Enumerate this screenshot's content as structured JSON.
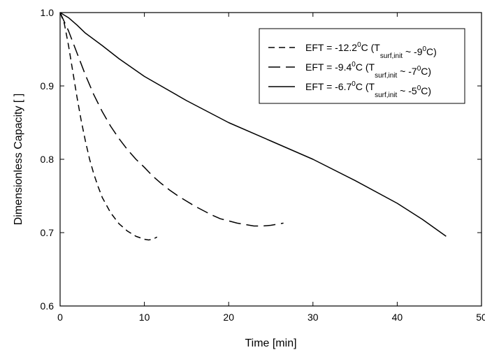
{
  "chart_data": {
    "type": "line",
    "title": "",
    "xlabel": "Time [min]",
    "ylabel": "Dimensionless Capacity [ ]",
    "xlim": [
      0,
      50
    ],
    "ylim": [
      0.6,
      1.0
    ],
    "xticks": [
      0,
      10,
      20,
      30,
      40,
      50
    ],
    "xtick_labels": [
      "0",
      "10",
      "20",
      "30",
      "40",
      "50"
    ],
    "yticks": [
      0.6,
      0.7,
      0.8,
      0.9,
      1.0
    ],
    "ytick_labels": [
      "0.6",
      "0.7",
      "0.8",
      "0.9",
      "1.0"
    ],
    "grid": false,
    "legend_position": "top-right",
    "series": [
      {
        "name": "EFT = -12.2°C (Tsurf,init ~ -9°C)",
        "legend": {
          "pre": "EFT = -12.2",
          "sup1": "0",
          "mid": "C (T",
          "sub": "surf,init",
          "post": " ~ -9",
          "sup2": "0",
          "end": "C)"
        },
        "line_style": "dashed-short",
        "color": "#000000",
        "x": [
          0,
          0.5,
          1,
          1.5,
          2,
          2.5,
          3,
          3.5,
          4,
          4.5,
          5,
          6,
          7,
          8,
          9,
          10,
          10.5,
          11,
          11.5
        ],
        "y": [
          1.0,
          0.985,
          0.955,
          0.92,
          0.885,
          0.853,
          0.825,
          0.8,
          0.78,
          0.763,
          0.748,
          0.727,
          0.712,
          0.702,
          0.695,
          0.691,
          0.69,
          0.691,
          0.694
        ]
      },
      {
        "name": "EFT = -9.4°C (Tsurf,init ~ -7°C)",
        "legend": {
          "pre": "EFT = -9.4",
          "sup1": "0",
          "mid": "C (T",
          "sub": "surf,init",
          "post": " ~ -7",
          "sup2": "0",
          "end": "C)"
        },
        "line_style": "dashed-long",
        "color": "#000000",
        "x": [
          0,
          1,
          2,
          3,
          4,
          5,
          6,
          7,
          8,
          9,
          10,
          11,
          12,
          13,
          14,
          15,
          16,
          17,
          18,
          19,
          20,
          21,
          22,
          23,
          24,
          25,
          26.5
        ],
        "y": [
          1.0,
          0.975,
          0.945,
          0.915,
          0.888,
          0.865,
          0.845,
          0.828,
          0.813,
          0.8,
          0.789,
          0.777,
          0.767,
          0.758,
          0.75,
          0.743,
          0.736,
          0.73,
          0.724,
          0.719,
          0.716,
          0.713,
          0.711,
          0.709,
          0.709,
          0.71,
          0.713
        ]
      },
      {
        "name": "EFT = -6.7°C (Tsurf,init ~ -5°C)",
        "legend": {
          "pre": "EFT = -6.7",
          "sup1": "0",
          "mid": "C (T",
          "sub": "surf,init",
          "post": " ~ -5",
          "sup2": "0",
          "end": "C)"
        },
        "line_style": "solid",
        "color": "#000000",
        "x": [
          0,
          1,
          2,
          3,
          5,
          7,
          10,
          15,
          20,
          25,
          30,
          35,
          40,
          43,
          45.8
        ],
        "y": [
          1.0,
          0.993,
          0.983,
          0.972,
          0.955,
          0.937,
          0.913,
          0.88,
          0.85,
          0.825,
          0.8,
          0.771,
          0.74,
          0.718,
          0.695
        ]
      }
    ]
  }
}
